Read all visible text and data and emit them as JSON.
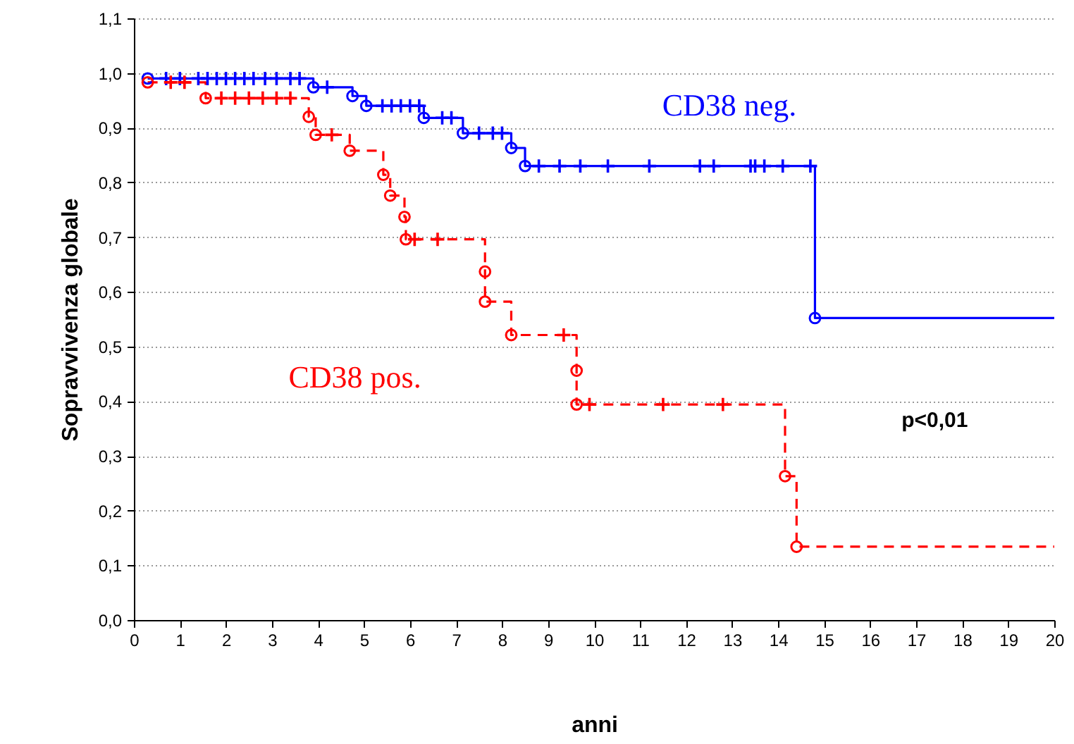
{
  "chart_data": {
    "type": "step",
    "xlabel": "anni",
    "ylabel": "Sopravvivenza globale",
    "xlim": [
      0,
      20
    ],
    "xticks": [
      0,
      1,
      2,
      3,
      4,
      5,
      6,
      7,
      8,
      9,
      10,
      11,
      12,
      13,
      14,
      15,
      16,
      17,
      18,
      19,
      20
    ],
    "ylim": [
      0,
      1.1
    ],
    "yticks": [
      {
        "value": 0,
        "label": "0,0"
      },
      {
        "value": 0.1,
        "label": "0,1"
      },
      {
        "value": 0.2,
        "label": "0,2"
      },
      {
        "value": 0.3,
        "label": "0,3"
      },
      {
        "value": 0.4,
        "label": "0,4"
      },
      {
        "value": 0.5,
        "label": "0,5"
      },
      {
        "value": 0.6,
        "label": "0,6"
      },
      {
        "value": 0.7,
        "label": "0,7"
      },
      {
        "value": 0.8,
        "label": "0,8"
      },
      {
        "value": 0.9,
        "label": "0,9"
      },
      {
        "value": 1.0,
        "label": "1,0"
      },
      {
        "value": 1.1,
        "label": "1,1"
      }
    ],
    "grid": "y",
    "legend": false,
    "annotations": [
      "p<0,01"
    ],
    "series": [
      {
        "name": "CD38 neg.",
        "type": "step",
        "color": "#0000ff",
        "line_style": "solid",
        "x": [
          0.3,
          3.9,
          4.75,
          5.05,
          6.3,
          7.15,
          8.2,
          8.5,
          14.8,
          20
        ],
        "values": [
          0.99,
          0.974,
          0.958,
          0.94,
          0.918,
          0.89,
          0.863,
          0.83,
          0.552,
          0.552
        ]
      },
      {
        "name": "CD38 pos.",
        "type": "step",
        "color": "#ff0000",
        "line_style": "dashed",
        "x": [
          0.3,
          1.56,
          3.8,
          3.95,
          4.69,
          5.42,
          5.57,
          5.88,
          5.91,
          7.63,
          7.63,
          8.2,
          9.62,
          9.62,
          14.15,
          14.4,
          20
        ],
        "values": [
          0.983,
          0.954,
          0.92,
          0.887,
          0.858,
          0.814,
          0.776,
          0.737,
          0.696,
          0.637,
          0.582,
          0.521,
          0.456,
          0.394,
          0.263,
          0.134,
          0.134
        ]
      },
      {
        "type": "scatter",
        "marker": "circle",
        "color": "#0000ff",
        "x": [
          0.3,
          3.9,
          4.75,
          5.05,
          6.3,
          7.15,
          8.2,
          8.5,
          14.8
        ],
        "values": [
          0.99,
          0.974,
          0.958,
          0.94,
          0.918,
          0.89,
          0.863,
          0.83,
          0.552
        ]
      },
      {
        "type": "scatter",
        "marker": "circle",
        "color": "#ff0000",
        "x": [
          0.3,
          1.56,
          3.8,
          3.95,
          4.69,
          5.42,
          5.57,
          5.88,
          5.91,
          7.63,
          7.63,
          8.2,
          9.62,
          9.62,
          14.15,
          14.4
        ],
        "values": [
          0.983,
          0.954,
          0.92,
          0.887,
          0.858,
          0.814,
          0.776,
          0.737,
          0.696,
          0.637,
          0.582,
          0.521,
          0.456,
          0.394,
          0.263,
          0.134
        ]
      },
      {
        "type": "scatter",
        "marker": "cross",
        "color": "#0000ff",
        "x": [
          0.7,
          1.0,
          1.4,
          1.6,
          1.8,
          2.0,
          2.2,
          2.4,
          2.6,
          2.85,
          3.1,
          3.4,
          3.6,
          4.2,
          5.4,
          5.6,
          5.8,
          6.0,
          6.2,
          6.7,
          6.9,
          7.5,
          7.8,
          8.0,
          8.8,
          9.25,
          9.7,
          10.3,
          11.2,
          12.3,
          12.6,
          13.4,
          13.5,
          13.7,
          14.1,
          14.7
        ],
        "values": [
          0.99,
          0.99,
          0.99,
          0.99,
          0.99,
          0.99,
          0.99,
          0.99,
          0.99,
          0.99,
          0.99,
          0.99,
          0.99,
          0.974,
          0.94,
          0.94,
          0.94,
          0.94,
          0.94,
          0.918,
          0.918,
          0.89,
          0.89,
          0.89,
          0.83,
          0.83,
          0.83,
          0.83,
          0.83,
          0.83,
          0.83,
          0.83,
          0.83,
          0.83,
          0.83,
          0.83
        ]
      },
      {
        "type": "scatter",
        "marker": "cross",
        "color": "#ff0000",
        "x": [
          0.8,
          1.1,
          1.9,
          2.2,
          2.5,
          2.8,
          3.1,
          3.4,
          4.3,
          6.1,
          6.6,
          9.34,
          9.9,
          11.5,
          12.8
        ],
        "values": [
          0.983,
          0.983,
          0.954,
          0.954,
          0.954,
          0.954,
          0.954,
          0.954,
          0.887,
          0.696,
          0.696,
          0.521,
          0.394,
          0.394,
          0.394
        ]
      }
    ]
  }
}
